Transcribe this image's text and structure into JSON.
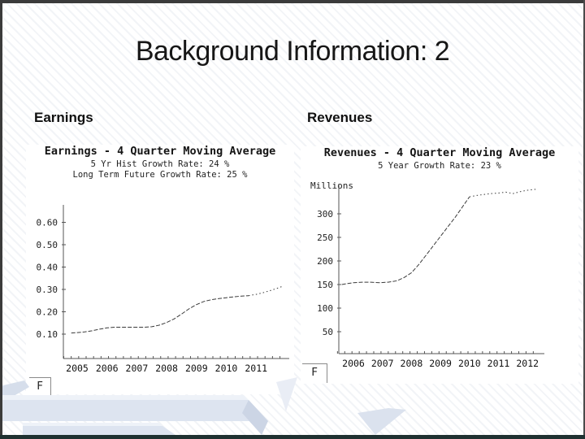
{
  "slide": {
    "title": "Background Information: 2",
    "left_section_label": "Earnings",
    "right_section_label": "Revenues"
  },
  "colors": {
    "line": "#3a3a3a",
    "axis": "#555555",
    "frame_edge": "#3b3b3b",
    "bottom_bar": "#1f3131",
    "ribbon_light": "#eef2f8",
    "ribbon_mid": "#dde4f0",
    "ribbon_dark": "#ccd5e5"
  },
  "chart_data": [
    {
      "type": "line",
      "title": "Earnings - 4 Quarter Moving Average",
      "subtitles": [
        "5 Yr Hist Growth Rate: 24 %",
        "Long Term Future Growth Rate: 25 %"
      ],
      "ylabel": "",
      "logo": "F",
      "grid": "off",
      "legend": "off",
      "ytick_values": [
        0.1,
        0.2,
        0.3,
        0.4,
        0.5,
        0.6
      ],
      "ytick_labels": [
        "0.10",
        "0.20",
        "0.30",
        "0.40",
        "0.50",
        "0.60"
      ],
      "xtick_values": [
        2005,
        2006,
        2007,
        2008,
        2009,
        2010,
        2011
      ],
      "xtick_labels": [
        "2005",
        "2006",
        "2007",
        "2008",
        "2009",
        "2010",
        "2011"
      ],
      "xlim": [
        2004.55,
        2011.95
      ],
      "ylim": [
        0,
        0.67
      ],
      "series": [
        {
          "name": "historical",
          "dashed": false,
          "points": [
            [
              2004.8,
              0.105
            ],
            [
              2005,
              0.107
            ],
            [
              2005.25,
              0.11
            ],
            [
              2005.5,
              0.115
            ],
            [
              2005.75,
              0.122
            ],
            [
              2006,
              0.128
            ],
            [
              2006.25,
              0.131
            ],
            [
              2006.75,
              0.131
            ],
            [
              2007.25,
              0.131
            ],
            [
              2007.5,
              0.133
            ],
            [
              2007.75,
              0.14
            ],
            [
              2008,
              0.152
            ],
            [
              2008.25,
              0.168
            ],
            [
              2008.5,
              0.19
            ],
            [
              2008.75,
              0.213
            ],
            [
              2009,
              0.232
            ],
            [
              2009.25,
              0.246
            ],
            [
              2009.5,
              0.254
            ],
            [
              2009.75,
              0.259
            ],
            [
              2010,
              0.263
            ],
            [
              2010.25,
              0.267
            ],
            [
              2010.5,
              0.27
            ],
            [
              2010.75,
              0.272
            ]
          ]
        },
        {
          "name": "estimated",
          "dashed": true,
          "points": [
            [
              2010.75,
              0.272
            ],
            [
              2011,
              0.278
            ],
            [
              2011.25,
              0.286
            ],
            [
              2011.5,
              0.296
            ],
            [
              2011.75,
              0.307
            ],
            [
              2011.9,
              0.315
            ]
          ]
        }
      ]
    },
    {
      "type": "line",
      "title": "Revenues - 4 Quarter Moving Average",
      "subtitles": [
        "5 Year Growth Rate: 23 %"
      ],
      "ylabel": "Millions",
      "logo": "F",
      "grid": "off",
      "legend": "off",
      "ytick_values": [
        50,
        100,
        150,
        200,
        250,
        300
      ],
      "ytick_labels": [
        "50",
        "100",
        "150",
        "200",
        "250",
        "300"
      ],
      "xtick_values": [
        2006,
        2007,
        2008,
        2009,
        2010,
        2011,
        2012
      ],
      "xtick_labels": [
        "2006",
        "2007",
        "2008",
        "2009",
        "2010",
        "2011",
        "2012"
      ],
      "xlim": [
        2005.45,
        2012.4
      ],
      "ylim": [
        0,
        370
      ],
      "series": [
        {
          "name": "historical",
          "dashed": false,
          "points": [
            [
              2005.6,
              150
            ],
            [
              2005.8,
              152
            ],
            [
              2006,
              154
            ],
            [
              2006.3,
              155
            ],
            [
              2006.6,
              155
            ],
            [
              2006.9,
              154
            ],
            [
              2007.2,
              155
            ],
            [
              2007.5,
              158
            ],
            [
              2007.75,
              165
            ],
            [
              2008,
              175
            ],
            [
              2008.25,
              192
            ],
            [
              2008.5,
              212
            ],
            [
              2008.75,
              232
            ],
            [
              2009,
              252
            ],
            [
              2009.25,
              272
            ],
            [
              2009.5,
              292
            ],
            [
              2009.75,
              314
            ],
            [
              2010,
              336
            ]
          ]
        },
        {
          "name": "estimated",
          "dashed": true,
          "points": [
            [
              2010,
              336
            ],
            [
              2010.25,
              339
            ],
            [
              2010.5,
              341
            ],
            [
              2010.75,
              343
            ],
            [
              2011,
              344
            ],
            [
              2011.25,
              346
            ],
            [
              2011.5,
              343
            ],
            [
              2011.75,
              347
            ],
            [
              2012,
              350
            ],
            [
              2012.3,
              352
            ]
          ]
        }
      ]
    }
  ]
}
